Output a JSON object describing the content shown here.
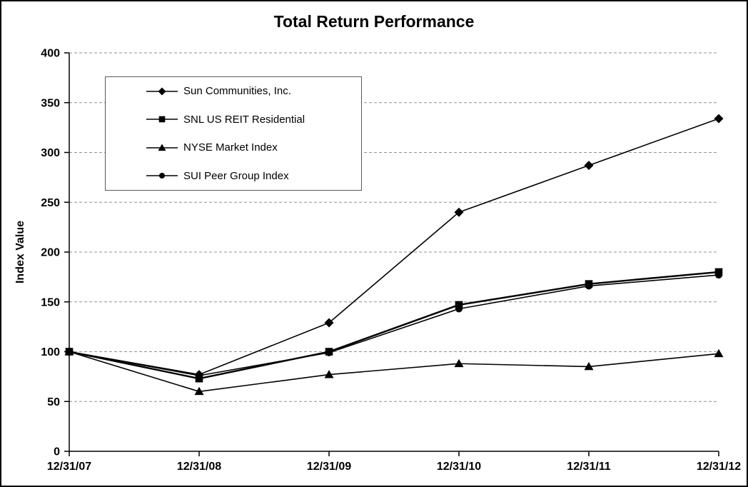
{
  "chart_data": {
    "type": "line",
    "title": "Total Return Performance",
    "xlabel": "",
    "ylabel": "Index Value",
    "ylim": [
      0,
      400
    ],
    "yticks": [
      0,
      50,
      100,
      150,
      200,
      250,
      300,
      350,
      400
    ],
    "grid": "horizontal-dashed",
    "legend_position": "inside-top-left",
    "categories": [
      "12/31/07",
      "12/31/08",
      "12/31/09",
      "12/31/10",
      "12/31/11",
      "12/31/12"
    ],
    "series": [
      {
        "name": "Sun Communities, Inc.",
        "marker": "diamond",
        "color": "#000000",
        "values": [
          100,
          77,
          129,
          240,
          287,
          334
        ]
      },
      {
        "name": "SNL US REIT Residential",
        "marker": "square",
        "color": "#000000",
        "values": [
          100,
          73,
          100,
          147,
          168,
          180
        ]
      },
      {
        "name": "NYSE Market Index",
        "marker": "triangle",
        "color": "#000000",
        "values": [
          100,
          60,
          77,
          88,
          85,
          98
        ]
      },
      {
        "name": "SUI Peer Group Index",
        "marker": "circle",
        "color": "#000000",
        "values": [
          100,
          76,
          99,
          143,
          166,
          177
        ]
      }
    ]
  },
  "colors": {
    "line": "#000000",
    "grid": "#909090",
    "background": "#ffffff",
    "frame_border": "#000000"
  }
}
